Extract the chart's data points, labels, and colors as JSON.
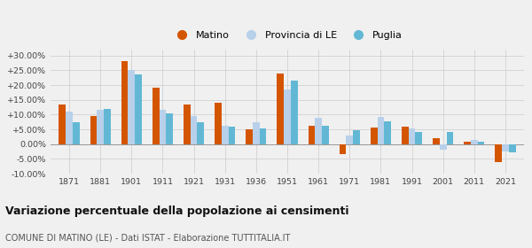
{
  "years": [
    1871,
    1881,
    1901,
    1911,
    1921,
    1931,
    1936,
    1951,
    1961,
    1971,
    1981,
    1991,
    2001,
    2011,
    2021
  ],
  "matino": [
    13.5,
    9.5,
    28.0,
    19.0,
    13.5,
    14.0,
    5.0,
    24.0,
    6.2,
    -3.5,
    5.5,
    5.8,
    2.0,
    0.8,
    -6.0
  ],
  "provincia_le": [
    11.0,
    11.5,
    25.0,
    11.5,
    9.5,
    6.2,
    7.5,
    18.5,
    8.8,
    2.8,
    9.2,
    5.2,
    -2.0,
    1.5,
    -2.5
  ],
  "puglia": [
    7.5,
    11.8,
    23.5,
    10.5,
    7.5,
    6.0,
    5.2,
    21.5,
    6.2,
    4.7,
    7.8,
    4.2,
    4.0,
    0.7,
    -2.8
  ],
  "color_matino": "#d45500",
  "color_provincia": "#b8d0ea",
  "color_puglia": "#62b8d4",
  "bg_color": "#f0f0f0",
  "ylim": [
    -10,
    32
  ],
  "yticks": [
    -10,
    -5,
    0,
    5,
    10,
    15,
    20,
    25,
    30
  ],
  "title": "Variazione percentuale della popolazione ai censimenti",
  "subtitle": "COMUNE DI MATINO (LE) - Dati ISTAT - Elaborazione TUTTITALIA.IT",
  "legend_labels": [
    "Matino",
    "Provincia di LE",
    "Puglia"
  ],
  "bar_width": 0.22
}
